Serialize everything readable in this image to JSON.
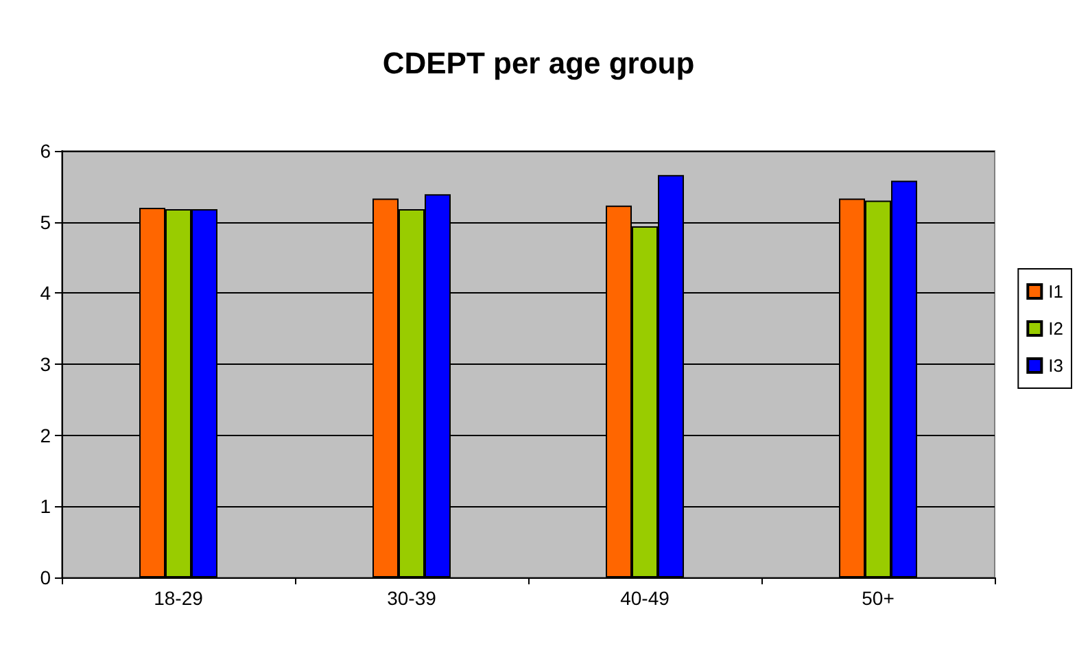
{
  "chart_data": {
    "type": "bar",
    "title": "CDEPT per age group",
    "categories": [
      "18-29",
      "30-39",
      "40-49",
      "50+"
    ],
    "series": [
      {
        "name": "I1",
        "color": "#ff6600",
        "values": [
          5.2,
          5.33,
          5.23,
          5.33
        ]
      },
      {
        "name": "I2",
        "color": "#99cc00",
        "values": [
          5.18,
          5.18,
          4.94,
          5.3
        ]
      },
      {
        "name": "I3",
        "color": "#0000ff",
        "values": [
          5.18,
          5.39,
          5.66,
          5.58
        ]
      }
    ],
    "ylim": [
      0,
      6
    ],
    "yticks": [
      0,
      1,
      2,
      3,
      4,
      5,
      6
    ],
    "grid": "y",
    "legend": "right"
  }
}
